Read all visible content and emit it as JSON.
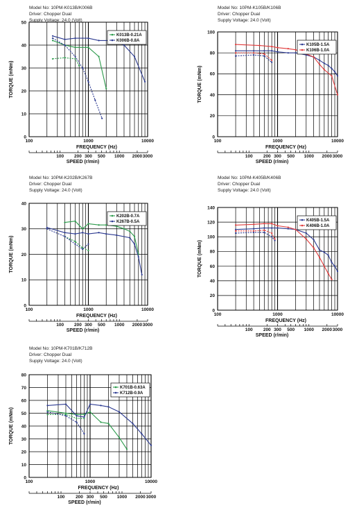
{
  "chart_data": [
    {
      "type": "line",
      "header": [
        "Model No: 10PM-K013B/K006B",
        "Driver: Chopper Dual",
        "Supply Voltage: 24.0 (Volt)"
      ],
      "xlabel": "FREQUENCY (Hz)",
      "ylabel": "TORQUE (mNm)",
      "speed_label": "SPEED (r/min)",
      "xlim": [
        100,
        10000
      ],
      "ylim": [
        0,
        50
      ],
      "x_tick_labels": [
        "100",
        "1000",
        "10000"
      ],
      "y_ticks": [
        0,
        10,
        20,
        30,
        40,
        50
      ],
      "speed_ticks": [
        "100",
        "200",
        "300",
        "500",
        "1000",
        "2000",
        "3000"
      ],
      "legend_pos": "top-right",
      "series": [
        {
          "name": "K013B-0.21A",
          "color": "#2a9a4a",
          "dashed": false,
          "x": [
            250,
            400,
            600,
            1000,
            1500,
            2000
          ],
          "y": [
            42,
            40,
            39,
            39,
            35,
            21
          ]
        },
        {
          "name": "K013B-0.21A",
          "color": "#2a9a4a",
          "dashed": true,
          "x": [
            250,
            400,
            600,
            700
          ],
          "y": [
            34,
            34.5,
            34,
            31
          ]
        },
        {
          "name": "K006B-0.8A",
          "color": "#2b3990",
          "dashed": false,
          "x": [
            250,
            400,
            600,
            1000,
            1500,
            2500,
            4000,
            6000,
            9000
          ],
          "y": [
            44,
            42.5,
            43,
            43,
            42,
            42,
            40,
            35,
            24
          ]
        },
        {
          "name": "K006B-0.8A",
          "color": "#2b3990",
          "dashed": true,
          "x": [
            250,
            400,
            600,
            800,
            1000,
            1300,
            1700
          ],
          "y": [
            43,
            40,
            35,
            30,
            24,
            16,
            8
          ]
        }
      ]
    },
    {
      "type": "line",
      "header": [
        "Model No: 10PM-K105B/K106B",
        "Driver: Chopper Dual",
        "Supply Voltage: 24.0 (Volt)"
      ],
      "xlabel": "FREQUENCY (Hz)",
      "ylabel": "TORQUE (mNm)",
      "speed_label": "SPEED (r/min)",
      "xlim": [
        100,
        10000
      ],
      "ylim": [
        0,
        100
      ],
      "x_tick_labels": [
        "100",
        "1000",
        "10000"
      ],
      "y_ticks": [
        0,
        20,
        40,
        60,
        80,
        100
      ],
      "speed_ticks": [
        "100",
        "200",
        "300",
        "500",
        "1000",
        "2000",
        "3000"
      ],
      "legend_pos": "top-right",
      "series": [
        {
          "name": "K105B-1.5A",
          "color": "#2b3990",
          "dashed": false,
          "x": [
            200,
            400,
            600,
            800,
            1000,
            1500,
            2000,
            3000,
            4000,
            5000,
            6000,
            7000,
            8000,
            9000,
            10000
          ],
          "y": [
            82,
            82,
            82,
            82,
            81,
            80,
            80,
            78,
            76,
            73,
            70,
            68,
            65,
            62,
            58
          ]
        },
        {
          "name": "K105B-1.5A",
          "color": "#2b3990",
          "dashed": true,
          "x": [
            200,
            400,
            600,
            800
          ],
          "y": [
            77,
            78,
            77,
            71
          ]
        },
        {
          "name": "K106B-1.0A",
          "color": "#e03a3a",
          "dashed": false,
          "x": [
            200,
            500,
            800,
            1000,
            1500,
            2000,
            3000,
            4000,
            5000,
            6000,
            8000,
            10000
          ],
          "y": [
            88,
            87,
            86,
            85,
            84,
            83,
            79,
            76,
            69,
            64,
            58,
            40
          ]
        },
        {
          "name": "K106B-1.0A",
          "color": "#e03a3a",
          "dashed": true,
          "x": [
            200,
            400,
            600,
            800
          ],
          "y": [
            80,
            80,
            79,
            73
          ]
        }
      ]
    },
    {
      "type": "line",
      "header": [
        "Model No: 10PM-K202B/K267B",
        "Driver: Chopper Dual",
        "Supply Voltage: 24.0 (Volt)"
      ],
      "xlabel": "FREQUENCY (Hz)",
      "ylabel": "TORQUE (mNm)",
      "speed_label": "SPEED (r/min)",
      "xlim": [
        100,
        10000
      ],
      "ylim": [
        0,
        40
      ],
      "x_tick_labels": [
        "100",
        "1000",
        "10000"
      ],
      "y_ticks": [
        0,
        10,
        20,
        30,
        40
      ],
      "speed_ticks": [
        "100",
        "200",
        "300",
        "500",
        "1000",
        "2000",
        "3000"
      ],
      "legend_pos": "top-right",
      "series": [
        {
          "name": "K202B-0.7A",
          "color": "#2a9a4a",
          "dashed": false,
          "x": [
            400,
            600,
            800,
            1000,
            1500,
            2000,
            3000,
            4000,
            5000,
            6000,
            7000
          ],
          "y": [
            32.5,
            33,
            30,
            32,
            31.5,
            31.5,
            31,
            30,
            29,
            27,
            20
          ]
        },
        {
          "name": "K202B-0.7A",
          "color": "#2a9a4a",
          "dashed": true,
          "x": [
            400,
            600,
            800,
            1000
          ],
          "y": [
            27,
            25,
            22.5,
            21.5
          ]
        },
        {
          "name": "K267B-0.5A",
          "color": "#2b3990",
          "dashed": false,
          "x": [
            200,
            400,
            600,
            800,
            1000,
            1500,
            2000,
            3000,
            5000,
            6000,
            7000,
            8000
          ],
          "y": [
            30.5,
            28.5,
            28,
            28.5,
            28,
            28.5,
            28,
            27.5,
            26.5,
            24,
            19,
            12
          ]
        },
        {
          "name": "K267B-0.5A",
          "color": "#2b3990",
          "dashed": true,
          "x": [
            200,
            400,
            600,
            800,
            1000
          ],
          "y": [
            30,
            27,
            24,
            22,
            24
          ]
        }
      ]
    },
    {
      "type": "line",
      "header": [
        "Model No: 10PM-K405B/K406B",
        "Driver: Chopper Dual",
        "Supply Voltage: 24.0 (Volt)"
      ],
      "xlabel": "FREQUENCY (Hz)",
      "ylabel": "TORQUE (mNm)",
      "speed_label": "SPEED (r/min)",
      "xlim": [
        100,
        10000
      ],
      "ylim": [
        0,
        140
      ],
      "x_tick_labels": [
        "100",
        "1000",
        "10000"
      ],
      "y_ticks": [
        0,
        20,
        40,
        60,
        80,
        100,
        120,
        140
      ],
      "speed_ticks": [
        "100",
        "200",
        "300",
        "500",
        "1000",
        "2000",
        "3000"
      ],
      "legend_pos": "top-right",
      "series": [
        {
          "name": "K405B-1.5A",
          "color": "#2b3990",
          "dashed": false,
          "x": [
            200,
            400,
            600,
            800,
            1000,
            1500,
            2000,
            3000,
            4000,
            5000,
            6000,
            7000,
            8000,
            9000,
            10000
          ],
          "y": [
            110,
            111,
            112,
            112,
            112,
            111,
            110,
            105,
            96,
            82,
            79,
            75,
            65,
            60,
            53
          ]
        },
        {
          "name": "K405B-1.5A",
          "color": "#2b3990",
          "dashed": true,
          "x": [
            200,
            400,
            600,
            800,
            900
          ],
          "y": [
            105,
            106,
            106,
            100,
            95
          ]
        },
        {
          "name": "K406B-1.0A",
          "color": "#e03a3a",
          "dashed": false,
          "x": [
            200,
            400,
            600,
            800,
            1000,
            1500,
            2000,
            3000,
            4000,
            5000,
            6000,
            7000,
            8000
          ],
          "y": [
            116,
            117,
            118,
            118,
            115,
            113,
            110,
            97,
            85,
            72,
            60,
            50,
            42
          ]
        },
        {
          "name": "K406B-1.0A",
          "color": "#e03a3a",
          "dashed": true,
          "x": [
            200,
            400,
            600,
            800,
            900
          ],
          "y": [
            108,
            108,
            109,
            105,
            97
          ]
        }
      ]
    },
    {
      "type": "line",
      "header": [
        "Model No: 10PM-K701B/K712B",
        "Driver: Chopper Dual",
        "Supply Voltage: 24.0 (Volt)"
      ],
      "xlabel": "FREQUENCY (Hz)",
      "ylabel": "TORQUE (mNm)",
      "speed_label": "SPEED (r/min)",
      "xlim": [
        100,
        10000
      ],
      "ylim": [
        0,
        80
      ],
      "x_tick_labels": [
        "100",
        "1000",
        "10000"
      ],
      "y_ticks": [
        0,
        10,
        20,
        30,
        40,
        50,
        60,
        70,
        80
      ],
      "speed_ticks": [
        "100",
        "200",
        "300",
        "500",
        "1000",
        "2000",
        "3000"
      ],
      "legend_pos": "top-right",
      "series": [
        {
          "name": "K701B-0.63A",
          "color": "#2a9a4a",
          "dashed": false,
          "x": [
            200,
            400,
            600,
            800,
            1000,
            1500,
            2000,
            3000,
            4000
          ],
          "y": [
            52,
            50,
            49,
            49,
            51,
            43,
            42,
            31,
            22
          ]
        },
        {
          "name": "K701B-0.63A",
          "color": "#2a9a4a",
          "dashed": true,
          "x": [
            200,
            400,
            600,
            800
          ],
          "y": [
            49,
            49,
            46,
            46
          ]
        },
        {
          "name": "K712B-0.9A",
          "color": "#2b3990",
          "dashed": false,
          "x": [
            200,
            400,
            600,
            800,
            1000,
            1500,
            2000,
            3000,
            5000,
            7000,
            10000
          ],
          "y": [
            56,
            57,
            48,
            47,
            57,
            56,
            55,
            51,
            42,
            34,
            25
          ]
        },
        {
          "name": "K712B-0.9A",
          "color": "#2b3990",
          "dashed": true,
          "x": [
            200,
            400,
            600,
            800
          ],
          "y": [
            51,
            48,
            43,
            34
          ]
        }
      ]
    }
  ]
}
